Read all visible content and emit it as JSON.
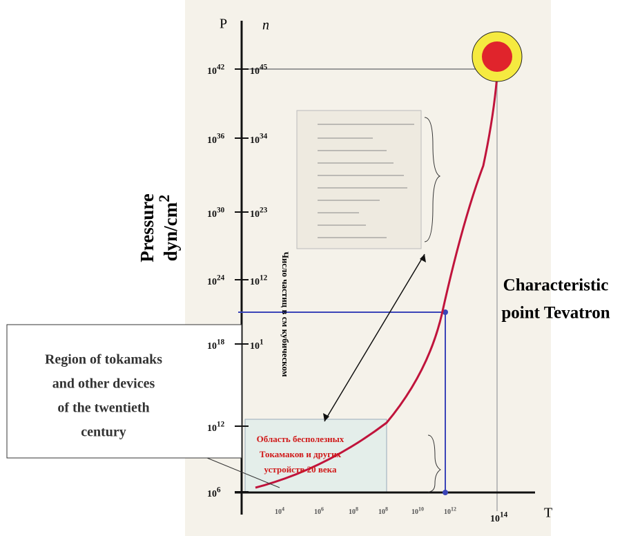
{
  "axes": {
    "p_label": "P",
    "n_label": "n",
    "t_label": "T",
    "y_label": [
      "Pressure",
      "dyn/cm",
      "2"
    ]
  },
  "left_ticks": [
    {
      "base": "10",
      "exp": "42"
    },
    {
      "base": "10",
      "exp": "36"
    },
    {
      "base": "10",
      "exp": "30"
    },
    {
      "base": "10",
      "exp": "24"
    },
    {
      "base": "10",
      "exp": "18"
    },
    {
      "base": "10",
      "exp": "12"
    },
    {
      "base": "10",
      "exp": "6"
    }
  ],
  "right_ticks": [
    {
      "base": "10",
      "exp": "45"
    },
    {
      "base": "10",
      "exp": "34"
    },
    {
      "base": "10",
      "exp": "23"
    },
    {
      "base": "10",
      "exp": "12"
    },
    {
      "base": "10",
      "exp": "1"
    }
  ],
  "x_ticks": [
    {
      "base": "10",
      "exp": "4"
    },
    {
      "base": "10",
      "exp": "6"
    },
    {
      "base": "10",
      "exp": "8"
    },
    {
      "base": "10",
      "exp": "8"
    },
    {
      "base": "10",
      "exp": "10"
    },
    {
      "base": "10",
      "exp": "12"
    }
  ],
  "x_end": {
    "base": "10",
    "exp": "14"
  },
  "tevatron": [
    "Characteristic",
    "point Tevatron"
  ],
  "region_box": [
    "Region of tokamaks",
    "and other devices",
    "of the twentieth",
    "century"
  ],
  "region_ru": [
    "Область бесполезных",
    "Токамаков и  других",
    "устройств 20 века"
  ],
  "vertical_ru": "Число частиц в см кубическом"
}
